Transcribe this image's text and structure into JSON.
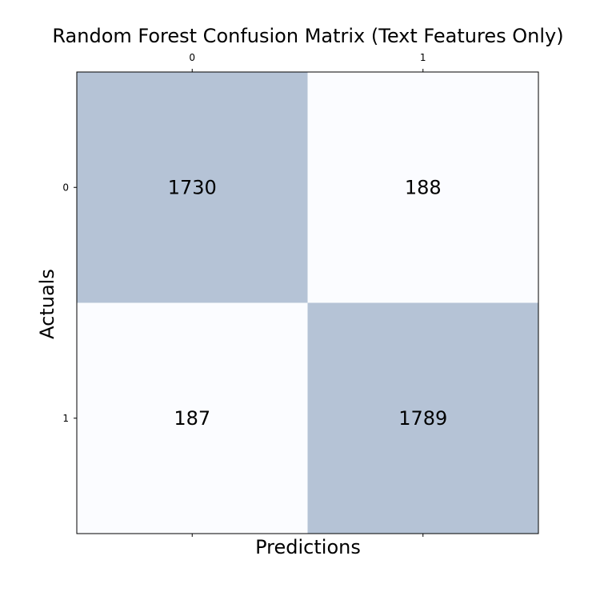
{
  "chart_data": {
    "type": "heatmap",
    "title": "Random Forest Confusion Matrix (Text Features Only)",
    "xlabel": "Predictions",
    "ylabel": "Actuals",
    "x_categories": [
      "0",
      "1"
    ],
    "y_categories": [
      "0",
      "1"
    ],
    "values": [
      [
        1730,
        188
      ],
      [
        187,
        1789
      ]
    ],
    "colormap": "Blues",
    "cell_colors": [
      [
        "#b5c3d6",
        "#fbfcff"
      ],
      [
        "#fbfcff",
        "#b5c3d6"
      ]
    ],
    "x_ticks_position": "top-and-bottom",
    "grid": false
  }
}
